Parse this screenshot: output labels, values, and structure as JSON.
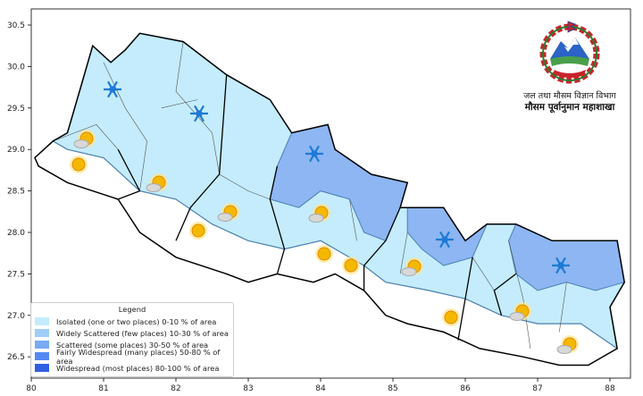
{
  "map": {
    "x_ticks": [
      "80",
      "81",
      "82",
      "83",
      "84",
      "85",
      "86",
      "87",
      "88"
    ],
    "y_ticks": [
      "30.5",
      "30.0",
      "29.5",
      "29.0",
      "28.5",
      "28.0",
      "27.5",
      "27.0",
      "26.5"
    ],
    "colors": {
      "none": "#ffffff",
      "isolated": "#c4ecfc",
      "scattered": "#8db6f2",
      "border": "#4a7fb0",
      "province": "#000000"
    },
    "icons": {
      "snow": "snowflake-icon",
      "sun": "sun-icon",
      "sun_cloud": "sun-with-cloud-rain-icon"
    }
  },
  "legend": {
    "title": "Legend",
    "items": [
      {
        "label": "Isolated (one or two places)  0-10 % of area",
        "color": "#c4ecfc"
      },
      {
        "label": "Widely Scattered (few places) 10-30 % of area",
        "color": "#a0cdf7"
      },
      {
        "label": "Scattered (some places) 30-50  % of area",
        "color": "#78aaf5"
      },
      {
        "label": "Fairly Widespread (many places) 50-80 % of area",
        "color": "#5588f3"
      },
      {
        "label": "Widespread (most places) 80-100 % of area",
        "color": "#2f5fe0"
      }
    ]
  },
  "logo": {
    "line1": "जल तथा मौसम विज्ञान विभाग",
    "line2": "मौसम पूर्वानुमान महाशाखा"
  }
}
